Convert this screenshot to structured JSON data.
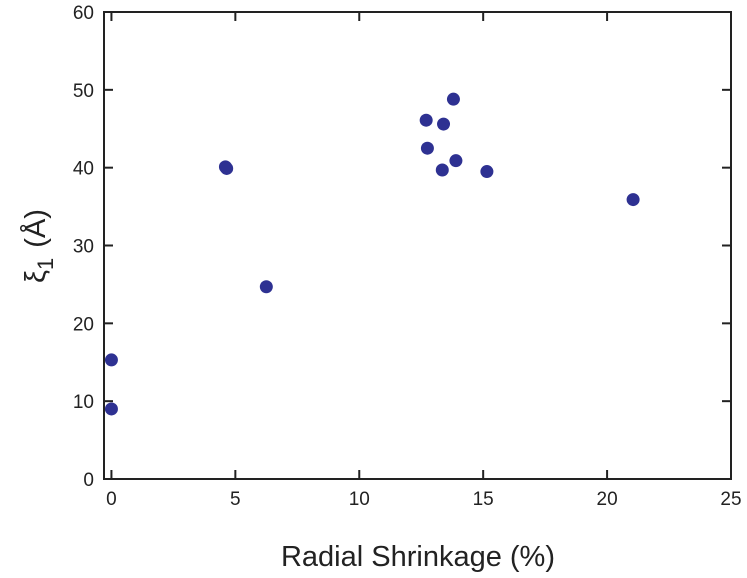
{
  "chart_data": {
    "type": "scatter",
    "title": "",
    "xlabel": "Radial Shrinkage (%)",
    "ylabel_symbol": "ξ",
    "ylabel_subscript": "1",
    "ylabel_unit": "(Å)",
    "xlim": [
      -0.3,
      25
    ],
    "ylim": [
      0,
      60
    ],
    "xticks": [
      0,
      5,
      10,
      15,
      20,
      25
    ],
    "yticks": [
      0,
      10,
      20,
      30,
      40,
      50,
      60
    ],
    "grid": false,
    "marker_color": "#2e3192",
    "series": [
      {
        "points": [
          {
            "x": 0.0,
            "y": 15.3
          },
          {
            "x": 0.0,
            "y": 9.0
          },
          {
            "x": 4.6,
            "y": 40.1
          },
          {
            "x": 4.65,
            "y": 39.9
          },
          {
            "x": 6.25,
            "y": 24.7
          },
          {
            "x": 12.7,
            "y": 46.1
          },
          {
            "x": 12.75,
            "y": 42.5
          },
          {
            "x": 13.4,
            "y": 45.6
          },
          {
            "x": 13.8,
            "y": 48.8
          },
          {
            "x": 13.35,
            "y": 39.7
          },
          {
            "x": 13.9,
            "y": 40.9
          },
          {
            "x": 15.15,
            "y": 39.5
          },
          {
            "x": 21.05,
            "y": 35.9
          }
        ]
      }
    ]
  }
}
